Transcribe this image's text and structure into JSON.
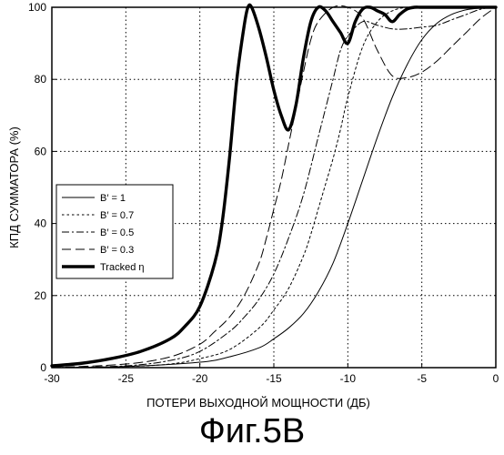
{
  "figure_caption": "Фиг.5В",
  "chart_data": {
    "type": "line",
    "title": "",
    "xlabel": "ПОТЕРИ ВЫХОДНОЙ МОЩНОСТИ (ДБ)",
    "ylabel": "КПД СУММАТОРА (%)",
    "xlim": [
      -30,
      0
    ],
    "ylim": [
      0,
      100
    ],
    "xticks": [
      -30,
      -25,
      -20,
      -15,
      -10,
      -5,
      0
    ],
    "yticks": [
      0,
      20,
      40,
      60,
      80,
      100
    ],
    "grid": true,
    "legend_position": "lower-left",
    "series": [
      {
        "name": "B′ = 1",
        "style": "solid-thin",
        "x": [
          -30,
          -25,
          -20,
          -18,
          -16,
          -15,
          -14,
          -13,
          -12,
          -11,
          -10,
          -9,
          -8,
          -7,
          -6,
          -5,
          -4,
          -3,
          -2,
          -1,
          0
        ],
        "y": [
          0,
          0.3,
          1.5,
          3,
          5.5,
          8,
          11,
          15,
          21,
          29,
          40,
          52,
          64,
          75,
          84,
          91,
          95.5,
          98,
          99.3,
          99.8,
          100
        ]
      },
      {
        "name": "B′ = 0.7",
        "style": "short-dash",
        "x": [
          -30,
          -25,
          -22,
          -20,
          -18,
          -16,
          -15,
          -14,
          -13,
          -12.5,
          -12,
          -11.5,
          -11,
          -10.5,
          -10,
          -9,
          -8,
          -7,
          -6,
          -5,
          -4,
          -3,
          -2,
          -1,
          0
        ],
        "y": [
          0,
          0.3,
          1,
          2.5,
          5,
          11,
          16,
          22,
          31,
          37,
          44,
          51,
          58,
          66,
          75,
          89,
          96,
          99,
          100,
          100,
          100,
          100,
          100,
          100,
          100
        ]
      },
      {
        "name": "B′ = 0.5",
        "style": "dash-dot",
        "x": [
          -30,
          -25,
          -22,
          -20,
          -18,
          -17,
          -16,
          -15,
          -14,
          -13,
          -12,
          -11.5,
          -11,
          -10.5,
          -10,
          -9,
          -8,
          -7,
          -6,
          -5,
          -4,
          -3,
          -2,
          -1,
          0
        ],
        "y": [
          0,
          0.5,
          2,
          4.5,
          10,
          14,
          19,
          26,
          36,
          48,
          64,
          72,
          80,
          88,
          92,
          96,
          95,
          94,
          94,
          94.5,
          95,
          96.5,
          98,
          99.5,
          100
        ]
      },
      {
        "name": "B′ = 0.3",
        "style": "long-dash",
        "x": [
          -30,
          -25,
          -22,
          -20,
          -19,
          -18,
          -17,
          -16,
          -15.5,
          -15,
          -14.5,
          -14,
          -13.5,
          -13,
          -12.5,
          -12,
          -11,
          -10,
          -9,
          -8,
          -7,
          -6,
          -5,
          -4,
          -3,
          -2,
          -1,
          0
        ],
        "y": [
          0,
          1,
          3,
          6.5,
          10,
          14,
          20,
          29,
          36,
          44,
          52,
          62,
          72,
          82,
          91,
          96,
          100,
          100,
          97,
          88,
          81,
          80.5,
          82,
          85,
          89,
          93,
          97,
          100
        ]
      },
      {
        "name": "Tracked η",
        "style": "bold",
        "x": [
          -30,
          -28,
          -26,
          -24,
          -22,
          -21,
          -20,
          -19,
          -18.5,
          -18,
          -17.5,
          -17,
          -16.75,
          -16.5,
          -16,
          -15.5,
          -15,
          -14.5,
          -14,
          -13.5,
          -13,
          -12.5,
          -12,
          -11.5,
          -11,
          -10.5,
          -10,
          -9.5,
          -9,
          -8.5,
          -8,
          -7.5,
          -7,
          -6.5,
          -6,
          -5.5,
          -5,
          -4,
          -3,
          -2,
          -1,
          0
        ],
        "y": [
          0.5,
          1.2,
          2.5,
          4.5,
          8,
          11.5,
          17,
          29,
          40,
          58,
          80,
          95,
          100,
          100,
          94,
          86,
          77,
          70,
          66,
          73,
          86,
          96,
          100,
          99,
          96,
          93,
          90,
          96,
          99.5,
          100,
          99,
          98,
          96,
          98,
          99.5,
          100,
          100,
          100,
          100,
          100,
          100,
          100
        ]
      }
    ]
  }
}
